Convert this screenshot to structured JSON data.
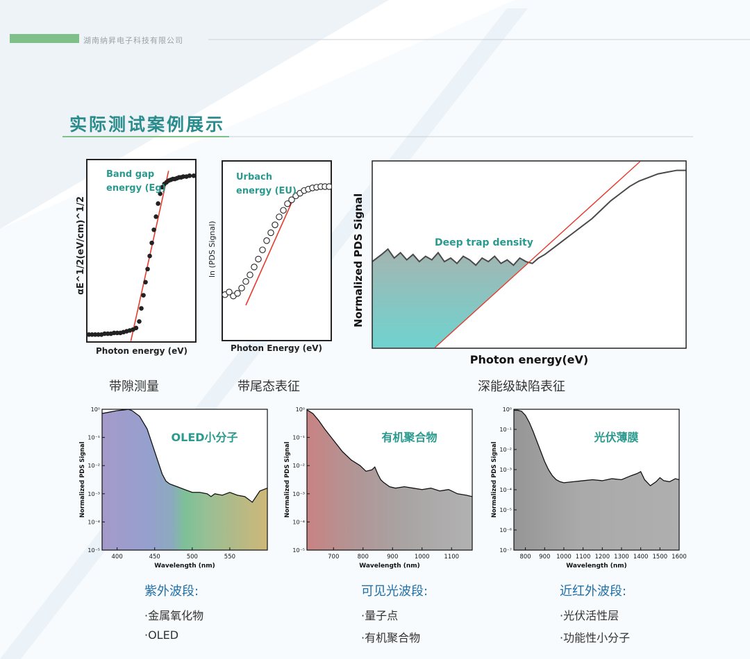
{
  "header": {
    "company": "湖南纳昇电子科技有限公司",
    "section_title": "实际测试案例展示"
  },
  "colors": {
    "accent_green": "#7fc08a",
    "title_teal": "#2a8c8c",
    "fit_red": "#e53b2e",
    "label_teal": "#2a9a8e",
    "cat_blue": "#1f6fa8"
  },
  "captions": {
    "bandgap": "带隙测量",
    "urbach": "带尾态表征",
    "deep": "深能级缺陷表征"
  },
  "chart_data": [
    {
      "type": "scatter",
      "id": "bandgap",
      "ylabel": "αE^1/2(eV/cm)^1/2",
      "xlabel": "Photon energy (eV)",
      "annotation_line1": "Band gap",
      "annotation_line2": "energy (Eg)",
      "x": [
        0,
        0.03,
        0.06,
        0.09,
        0.12,
        0.15,
        0.18,
        0.21,
        0.24,
        0.27,
        0.3,
        0.33,
        0.36,
        0.39,
        0.42,
        0.45,
        0.48,
        0.5,
        0.52,
        0.54,
        0.56,
        0.58,
        0.6,
        0.62,
        0.64,
        0.66,
        0.68,
        0.7,
        0.72,
        0.74,
        0.76,
        0.78,
        0.8,
        0.82,
        0.84,
        0.86,
        0.88,
        0.9,
        0.93,
        0.96,
        1.0
      ],
      "y": [
        0.02,
        0.02,
        0.02,
        0.02,
        0.02,
        0.025,
        0.025,
        0.025,
        0.03,
        0.03,
        0.03,
        0.035,
        0.04,
        0.045,
        0.05,
        0.06,
        0.1,
        0.18,
        0.26,
        0.34,
        0.42,
        0.5,
        0.58,
        0.66,
        0.74,
        0.82,
        0.88,
        0.92,
        0.94,
        0.95,
        0.96,
        0.965,
        0.97,
        0.97,
        0.975,
        0.98,
        0.98,
        0.985,
        0.985,
        0.99,
        0.99
      ],
      "fit_line": {
        "x": [
          0.4,
          0.76
        ],
        "y": [
          -0.02,
          1.02
        ]
      }
    },
    {
      "type": "scatter",
      "id": "urbach",
      "ylabel": "ln (PDS Signal)",
      "xlabel": "Photon Energy (eV)",
      "annotation_line1": "Urbach",
      "annotation_line2": "energy (EU)",
      "x": [
        0,
        0.04,
        0.08,
        0.12,
        0.16,
        0.2,
        0.24,
        0.28,
        0.32,
        0.36,
        0.4,
        0.44,
        0.48,
        0.52,
        0.56,
        0.6,
        0.64,
        0.68,
        0.72,
        0.76,
        0.8,
        0.84,
        0.88,
        0.92,
        0.96,
        1.0
      ],
      "y": [
        0.18,
        0.2,
        0.17,
        0.19,
        0.23,
        0.28,
        0.33,
        0.39,
        0.45,
        0.52,
        0.59,
        0.65,
        0.71,
        0.77,
        0.82,
        0.87,
        0.9,
        0.93,
        0.95,
        0.97,
        0.98,
        0.99,
        0.995,
        1.0,
        1.0,
        1.0
      ],
      "fit_line": {
        "x": [
          0.2,
          0.68
        ],
        "y": [
          0.1,
          0.95
        ]
      }
    },
    {
      "type": "area",
      "id": "deep",
      "ylabel": "Normalized PDS Signal",
      "xlabel": "Photon energy(eV)",
      "annotation": "Deep trap density",
      "x": [
        0,
        0.03,
        0.05,
        0.07,
        0.09,
        0.11,
        0.13,
        0.15,
        0.17,
        0.19,
        0.21,
        0.23,
        0.25,
        0.27,
        0.29,
        0.31,
        0.33,
        0.35,
        0.37,
        0.39,
        0.41,
        0.43,
        0.45,
        0.47,
        0.49,
        0.51,
        0.53,
        0.55,
        0.58,
        0.61,
        0.64,
        0.67,
        0.7,
        0.73,
        0.76,
        0.79,
        0.82,
        0.85,
        0.88,
        0.91,
        0.94,
        0.97,
        1.0
      ],
      "y": [
        0.48,
        0.52,
        0.55,
        0.5,
        0.53,
        0.49,
        0.52,
        0.48,
        0.51,
        0.49,
        0.53,
        0.48,
        0.5,
        0.47,
        0.51,
        0.49,
        0.46,
        0.5,
        0.48,
        0.51,
        0.47,
        0.49,
        0.46,
        0.5,
        0.48,
        0.47,
        0.5,
        0.52,
        0.56,
        0.6,
        0.64,
        0.68,
        0.72,
        0.77,
        0.82,
        0.86,
        0.9,
        0.93,
        0.95,
        0.97,
        0.98,
        0.99,
        0.99
      ],
      "fit_line": {
        "x": [
          0.2,
          0.86
        ],
        "y": [
          0.0,
          1.05
        ]
      }
    },
    {
      "type": "area",
      "id": "oled",
      "log_scale": true,
      "ylabel": "Normalized PDS Signal",
      "xlabel": "Wavelength (nm)",
      "label": "OLED小分子",
      "xlim": [
        380,
        600
      ],
      "ylim_exp": [
        -5,
        0
      ],
      "xticks": [
        400,
        450,
        500,
        550
      ],
      "ytick_exps": [
        0,
        -1,
        -2,
        -3,
        -4,
        -5
      ],
      "x": [
        380,
        390,
        400,
        410,
        415,
        420,
        430,
        440,
        450,
        460,
        465,
        470,
        475,
        480,
        490,
        500,
        510,
        520,
        525,
        530,
        540,
        550,
        560,
        570,
        580,
        590,
        600
      ],
      "y_exp": [
        -0.15,
        -0.1,
        -0.05,
        -0.02,
        0,
        -0.05,
        -0.25,
        -0.7,
        -1.5,
        -2.3,
        -2.55,
        -2.65,
        -2.7,
        -2.75,
        -2.85,
        -2.95,
        -2.95,
        -3.0,
        -3.1,
        -3.0,
        -3.05,
        -2.95,
        -3.05,
        -3.1,
        -3.3,
        -2.9,
        -2.8
      ]
    },
    {
      "type": "area",
      "id": "polymer",
      "log_scale": true,
      "ylabel": "Normalized PDS Signal",
      "xlabel": "Wavelength (nm)",
      "label": "有机聚合物",
      "xlim": [
        610,
        1170
      ],
      "ylim_exp": [
        -5,
        0
      ],
      "xticks": [
        700,
        800,
        900,
        1000,
        1100
      ],
      "ytick_exps": [
        0,
        -1,
        -2,
        -3,
        -4,
        -5
      ],
      "x": [
        610,
        630,
        650,
        670,
        700,
        730,
        760,
        790,
        810,
        830,
        840,
        850,
        860,
        870,
        890,
        910,
        940,
        970,
        1000,
        1030,
        1060,
        1090,
        1120,
        1150,
        1170
      ],
      "y_exp": [
        -0.02,
        -0.15,
        -0.4,
        -0.7,
        -1.1,
        -1.5,
        -1.8,
        -2.0,
        -2.2,
        -2.15,
        -2.05,
        -2.3,
        -2.5,
        -2.6,
        -2.75,
        -2.8,
        -2.75,
        -2.8,
        -2.85,
        -2.8,
        -2.9,
        -2.85,
        -3.0,
        -3.05,
        -3.1
      ]
    },
    {
      "type": "area",
      "id": "pv",
      "log_scale": true,
      "ylabel": "Normalized PDS Signal",
      "xlabel": "Wavelength (nm)",
      "label": "光伏薄膜",
      "xlim": [
        740,
        1600
      ],
      "ylim_exp": [
        -7,
        0
      ],
      "xticks": [
        800,
        900,
        1000,
        1100,
        1200,
        1300,
        1400,
        1500,
        1600
      ],
      "ytick_exps": [
        0,
        -1,
        -2,
        -3,
        -4,
        -5,
        -6,
        -7
      ],
      "x": [
        740,
        760,
        780,
        800,
        820,
        840,
        860,
        880,
        900,
        920,
        940,
        960,
        980,
        1000,
        1050,
        1100,
        1150,
        1200,
        1250,
        1300,
        1350,
        1380,
        1400,
        1420,
        1450,
        1480,
        1500,
        1520,
        1550,
        1580,
        1600
      ],
      "y_exp": [
        -0.05,
        -0.05,
        -0.1,
        -0.3,
        -0.65,
        -1.1,
        -1.6,
        -2.1,
        -2.6,
        -3.0,
        -3.3,
        -3.5,
        -3.6,
        -3.65,
        -3.6,
        -3.55,
        -3.5,
        -3.55,
        -3.45,
        -3.5,
        -3.3,
        -3.2,
        -3.1,
        -3.5,
        -3.8,
        -3.6,
        -3.4,
        -3.55,
        -3.6,
        -3.45,
        -3.5
      ]
    }
  ],
  "categories": [
    {
      "title": "紫外波段:",
      "items": [
        "·金属氧化物",
        "·OLED"
      ]
    },
    {
      "title": "可见光波段:",
      "items": [
        "·量子点",
        "·有机聚合物"
      ]
    },
    {
      "title": "近红外波段:",
      "items": [
        "·光伏活性层",
        "·功能性小分子"
      ]
    }
  ]
}
